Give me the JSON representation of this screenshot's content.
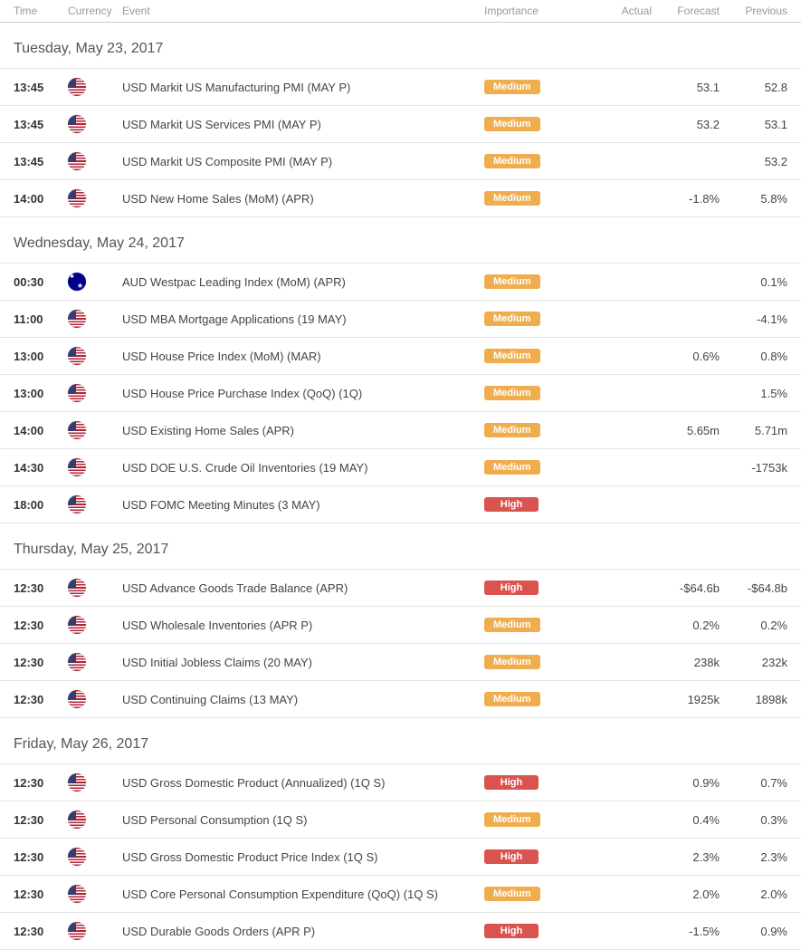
{
  "columns": {
    "time": "Time",
    "currency": "Currency",
    "event": "Event",
    "importance": "Importance",
    "actual": "Actual",
    "forecast": "Forecast",
    "previous": "Previous"
  },
  "importance_colors": {
    "Medium": "#f0ad4e",
    "High": "#d9534f"
  },
  "days": [
    {
      "label": "Tuesday, May 23, 2017",
      "events": [
        {
          "time": "13:45",
          "currency": "USD",
          "event": "USD Markit US Manufacturing PMI (MAY P)",
          "importance": "Medium",
          "actual": "",
          "forecast": "53.1",
          "previous": "52.8"
        },
        {
          "time": "13:45",
          "currency": "USD",
          "event": "USD Markit US Services PMI (MAY P)",
          "importance": "Medium",
          "actual": "",
          "forecast": "53.2",
          "previous": "53.1"
        },
        {
          "time": "13:45",
          "currency": "USD",
          "event": "USD Markit US Composite PMI (MAY P)",
          "importance": "Medium",
          "actual": "",
          "forecast": "",
          "previous": "53.2"
        },
        {
          "time": "14:00",
          "currency": "USD",
          "event": "USD New Home Sales (MoM) (APR)",
          "importance": "Medium",
          "actual": "",
          "forecast": "-1.8%",
          "previous": "5.8%"
        }
      ]
    },
    {
      "label": "Wednesday, May 24, 2017",
      "events": [
        {
          "time": "00:30",
          "currency": "AUD",
          "event": "AUD Westpac Leading Index (MoM) (APR)",
          "importance": "Medium",
          "actual": "",
          "forecast": "",
          "previous": "0.1%"
        },
        {
          "time": "11:00",
          "currency": "USD",
          "event": "USD MBA Mortgage Applications (19 MAY)",
          "importance": "Medium",
          "actual": "",
          "forecast": "",
          "previous": "-4.1%"
        },
        {
          "time": "13:00",
          "currency": "USD",
          "event": "USD House Price Index (MoM) (MAR)",
          "importance": "Medium",
          "actual": "",
          "forecast": "0.6%",
          "previous": "0.8%"
        },
        {
          "time": "13:00",
          "currency": "USD",
          "event": "USD House Price Purchase Index (QoQ) (1Q)",
          "importance": "Medium",
          "actual": "",
          "forecast": "",
          "previous": "1.5%"
        },
        {
          "time": "14:00",
          "currency": "USD",
          "event": "USD Existing Home Sales (APR)",
          "importance": "Medium",
          "actual": "",
          "forecast": "5.65m",
          "previous": "5.71m"
        },
        {
          "time": "14:30",
          "currency": "USD",
          "event": "USD DOE U.S. Crude Oil Inventories (19 MAY)",
          "importance": "Medium",
          "actual": "",
          "forecast": "",
          "previous": "-1753k"
        },
        {
          "time": "18:00",
          "currency": "USD",
          "event": "USD FOMC Meeting Minutes (3 MAY)",
          "importance": "High",
          "actual": "",
          "forecast": "",
          "previous": ""
        }
      ]
    },
    {
      "label": "Thursday, May 25, 2017",
      "events": [
        {
          "time": "12:30",
          "currency": "USD",
          "event": "USD Advance Goods Trade Balance (APR)",
          "importance": "High",
          "actual": "",
          "forecast": "-$64.6b",
          "previous": "-$64.8b"
        },
        {
          "time": "12:30",
          "currency": "USD",
          "event": "USD Wholesale Inventories (APR P)",
          "importance": "Medium",
          "actual": "",
          "forecast": "0.2%",
          "previous": "0.2%"
        },
        {
          "time": "12:30",
          "currency": "USD",
          "event": "USD Initial Jobless Claims (20 MAY)",
          "importance": "Medium",
          "actual": "",
          "forecast": "238k",
          "previous": "232k"
        },
        {
          "time": "12:30",
          "currency": "USD",
          "event": "USD Continuing Claims (13 MAY)",
          "importance": "Medium",
          "actual": "",
          "forecast": "1925k",
          "previous": "1898k"
        }
      ]
    },
    {
      "label": "Friday, May 26, 2017",
      "events": [
        {
          "time": "12:30",
          "currency": "USD",
          "event": "USD Gross Domestic Product (Annualized) (1Q S)",
          "importance": "High",
          "actual": "",
          "forecast": "0.9%",
          "previous": "0.7%"
        },
        {
          "time": "12:30",
          "currency": "USD",
          "event": "USD Personal Consumption (1Q S)",
          "importance": "Medium",
          "actual": "",
          "forecast": "0.4%",
          "previous": "0.3%"
        },
        {
          "time": "12:30",
          "currency": "USD",
          "event": "USD Gross Domestic Product Price Index (1Q S)",
          "importance": "High",
          "actual": "",
          "forecast": "2.3%",
          "previous": "2.3%"
        },
        {
          "time": "12:30",
          "currency": "USD",
          "event": "USD Core Personal Consumption Expenditure (QoQ) (1Q S)",
          "importance": "Medium",
          "actual": "",
          "forecast": "2.0%",
          "previous": "2.0%"
        },
        {
          "time": "12:30",
          "currency": "USD",
          "event": "USD Durable Goods Orders (APR P)",
          "importance": "High",
          "actual": "",
          "forecast": "-1.5%",
          "previous": "0.9%"
        }
      ]
    }
  ]
}
